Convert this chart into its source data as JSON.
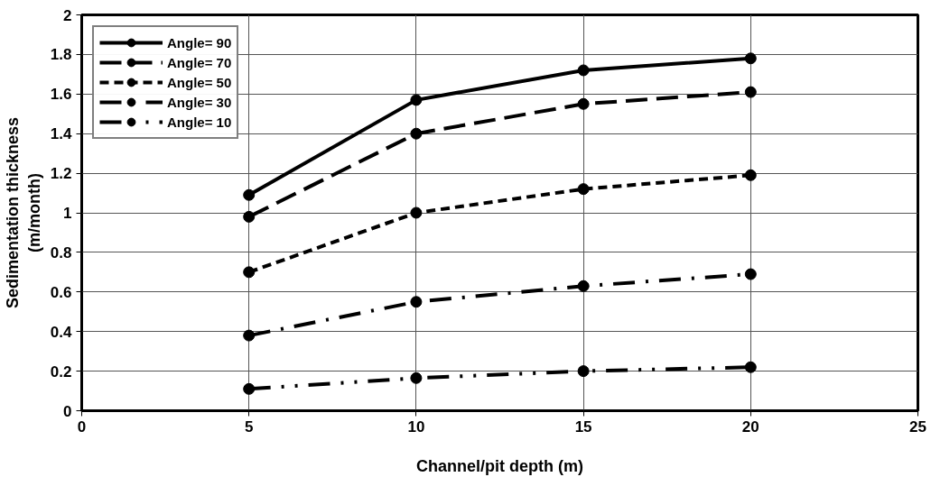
{
  "chart_data": {
    "type": "line",
    "xlabel": "Channel/pit depth (m)",
    "ylabel": "Sedimentation thickness\n(m/month)",
    "x": [
      5,
      10,
      15,
      20
    ],
    "series": [
      {
        "name": "Angle= 90",
        "color": "#000000",
        "line_style": "solid",
        "values": [
          1.09,
          1.57,
          1.72,
          1.78
        ]
      },
      {
        "name": "Angle= 70",
        "color": "#000000",
        "line_style": "long_dash",
        "values": [
          0.98,
          1.4,
          1.55,
          1.61
        ]
      },
      {
        "name": "Angle= 50",
        "color": "#000000",
        "line_style": "dashed",
        "values": [
          0.7,
          1.0,
          1.12,
          1.19
        ]
      },
      {
        "name": "Angle= 30",
        "color": "#000000",
        "line_style": "dash_dot",
        "values": [
          0.38,
          0.55,
          0.63,
          0.69
        ]
      },
      {
        "name": "Angle= 10",
        "color": "#000000",
        "line_style": "dash_dot_dot",
        "values": [
          0.11,
          0.165,
          0.2,
          0.22
        ]
      }
    ],
    "xlim": [
      0,
      25
    ],
    "xticks": [
      0,
      5,
      10,
      15,
      20,
      25
    ],
    "ylim": [
      0,
      2
    ],
    "yticks": [
      0,
      0.2,
      0.4,
      0.6,
      0.8,
      1,
      1.2,
      1.4,
      1.6,
      1.8,
      2
    ],
    "grid": true,
    "legend": "top left",
    "marker": "circle"
  }
}
